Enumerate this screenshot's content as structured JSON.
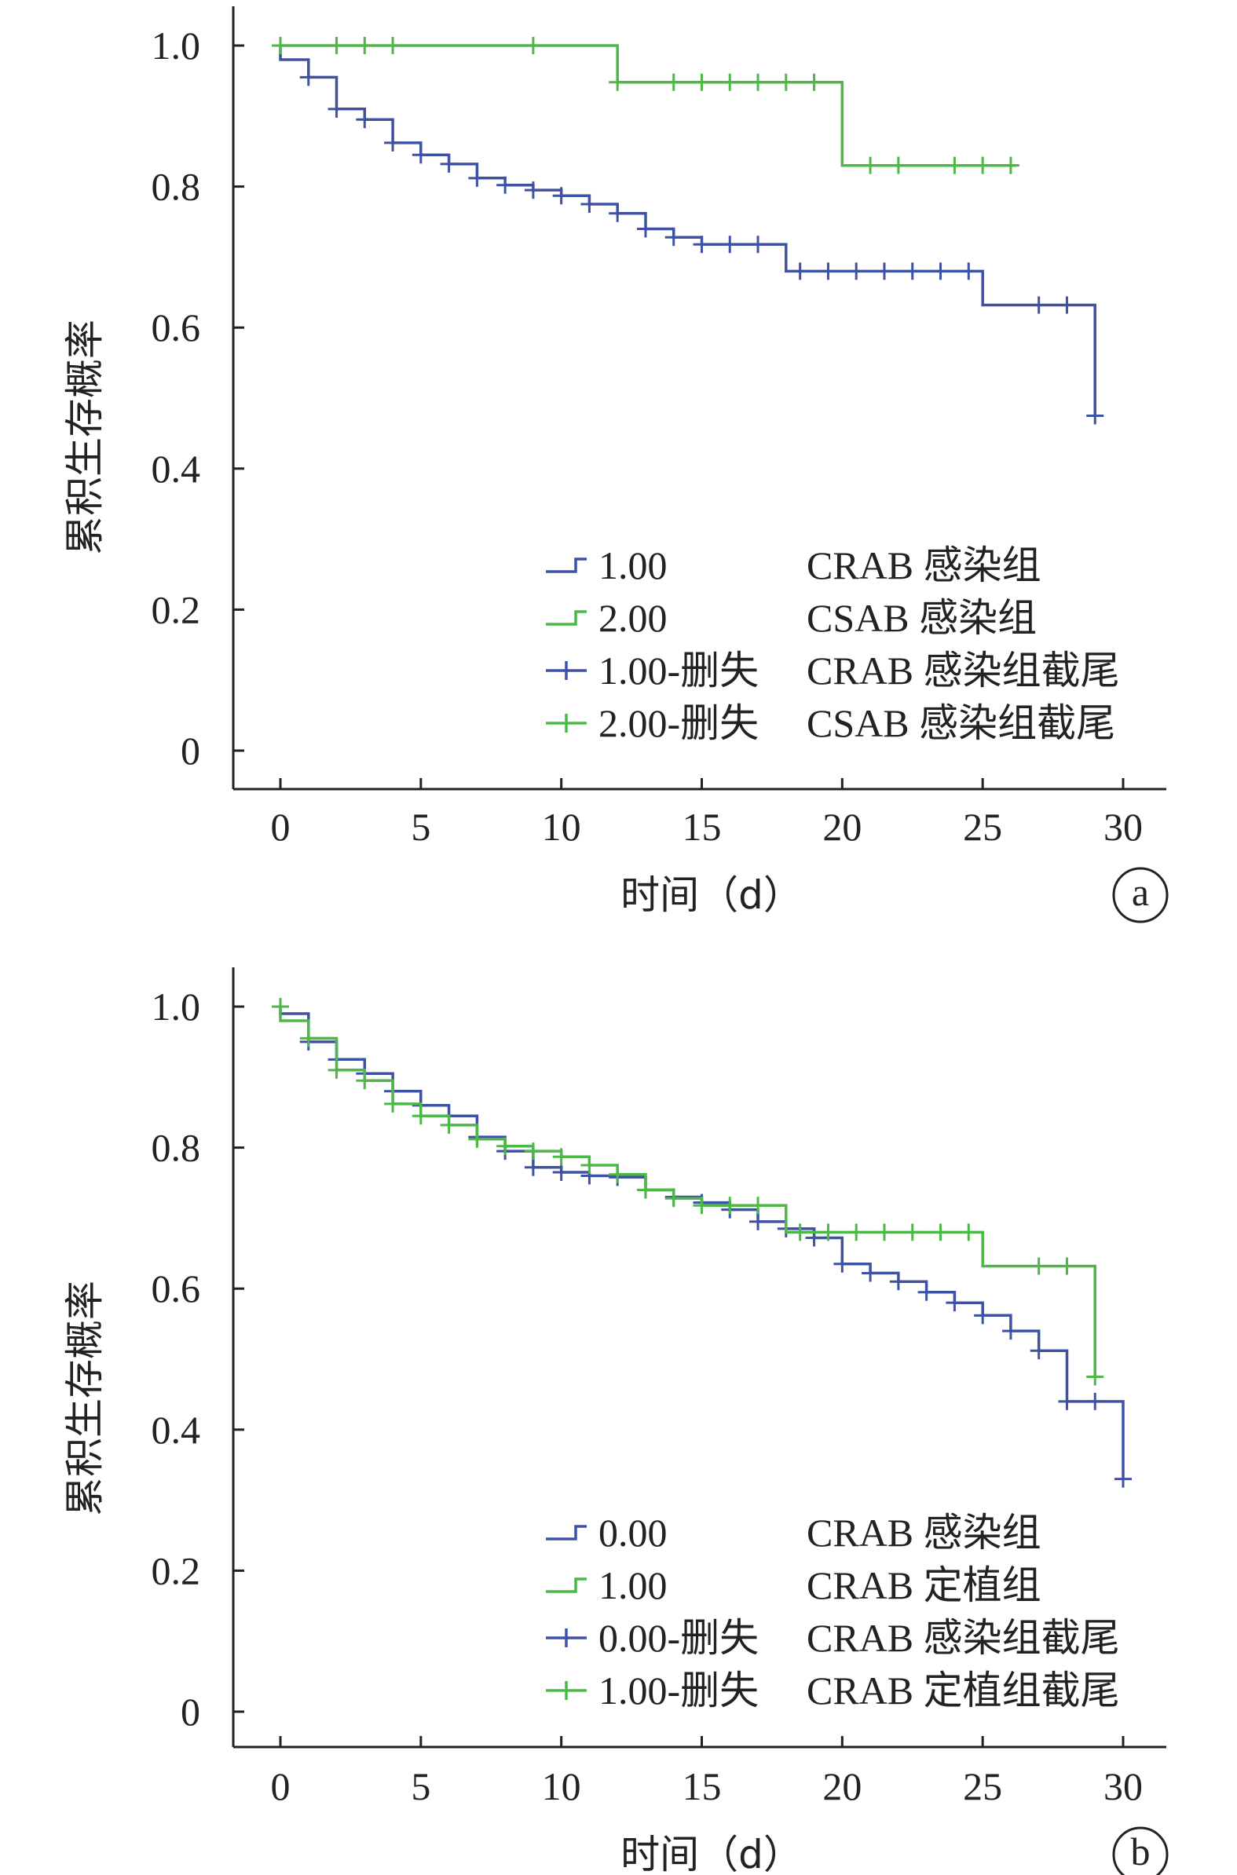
{
  "colors": {
    "blue": "#3f51a5",
    "green": "#4cb846",
    "axis": "#222222"
  },
  "chart_data": [
    {
      "type": "line",
      "subtype": "kaplan-meier",
      "panel_label": "a",
      "xlabel": "时间（d）",
      "ylabel": "累积生存概率",
      "xlim": [
        0,
        31
      ],
      "ylim": [
        0,
        1.0
      ],
      "xticks": [
        0,
        5,
        10,
        15,
        20,
        25,
        30
      ],
      "xtick_labels": [
        "0",
        "5",
        "10",
        "15",
        "20",
        "25",
        "30"
      ],
      "yticks": [
        0,
        0.2,
        0.4,
        0.6,
        0.8,
        1.0
      ],
      "ytick_labels": [
        "0",
        "0.2",
        "0.4",
        "0.6",
        "0.8",
        "1.0"
      ],
      "legend": {
        "position": "lower-right",
        "entries": [
          {
            "code": "1.00",
            "label": "CRAB 感染组",
            "marker": "step",
            "color": "blue"
          },
          {
            "code": "2.00",
            "label": "CSAB 感染组",
            "marker": "step",
            "color": "green"
          },
          {
            "code": "1.00-删失",
            "label": "CRAB 感染组截尾",
            "marker": "plus",
            "color": "blue"
          },
          {
            "code": "2.00-删失",
            "label": "CSAB 感染组截尾",
            "marker": "plus",
            "color": "green"
          }
        ]
      },
      "series": [
        {
          "color": "blue",
          "steps": [
            [
              0,
              1.0
            ],
            [
              0,
              0.98
            ],
            [
              1,
              0.98
            ],
            [
              1,
              0.955
            ],
            [
              2,
              0.955
            ],
            [
              2,
              0.91
            ],
            [
              3,
              0.91
            ],
            [
              3,
              0.895
            ],
            [
              4,
              0.895
            ],
            [
              4,
              0.862
            ],
            [
              5,
              0.862
            ],
            [
              5,
              0.845
            ],
            [
              6,
              0.845
            ],
            [
              6,
              0.832
            ],
            [
              7,
              0.832
            ],
            [
              7,
              0.812
            ],
            [
              8,
              0.812
            ],
            [
              8,
              0.802
            ],
            [
              9,
              0.802
            ],
            [
              9,
              0.795
            ],
            [
              10,
              0.795
            ],
            [
              10,
              0.787
            ],
            [
              11,
              0.787
            ],
            [
              11,
              0.775
            ],
            [
              12,
              0.775
            ],
            [
              12,
              0.762
            ],
            [
              13,
              0.762
            ],
            [
              13,
              0.74
            ],
            [
              14,
              0.74
            ],
            [
              14,
              0.728
            ],
            [
              15,
              0.728
            ],
            [
              15,
              0.718
            ],
            [
              18,
              0.718
            ],
            [
              18,
              0.68
            ],
            [
              25,
              0.68
            ],
            [
              25,
              0.632
            ],
            [
              29,
              0.632
            ],
            [
              29,
              0.475
            ]
          ],
          "censored": [
            [
              0,
              1.0
            ],
            [
              1,
              0.955
            ],
            [
              2,
              0.91
            ],
            [
              3,
              0.895
            ],
            [
              4,
              0.862
            ],
            [
              5,
              0.845
            ],
            [
              6,
              0.832
            ],
            [
              7,
              0.812
            ],
            [
              8,
              0.802
            ],
            [
              9,
              0.795
            ],
            [
              10,
              0.787
            ],
            [
              11,
              0.775
            ],
            [
              12,
              0.762
            ],
            [
              13,
              0.74
            ],
            [
              14,
              0.728
            ],
            [
              15,
              0.718
            ],
            [
              16,
              0.718
            ],
            [
              17,
              0.718
            ],
            [
              18.5,
              0.68
            ],
            [
              19.5,
              0.68
            ],
            [
              20.5,
              0.68
            ],
            [
              21.5,
              0.68
            ],
            [
              22.5,
              0.68
            ],
            [
              23.5,
              0.68
            ],
            [
              24.5,
              0.68
            ],
            [
              27,
              0.632
            ],
            [
              28,
              0.632
            ],
            [
              29,
              0.475
            ]
          ]
        },
        {
          "color": "green",
          "steps": [
            [
              0,
              1.0
            ],
            [
              12,
              1.0
            ],
            [
              12,
              0.948
            ],
            [
              20,
              0.948
            ],
            [
              20,
              0.83
            ],
            [
              26.2,
              0.83
            ]
          ],
          "censored": [
            [
              0,
              1.0
            ],
            [
              2,
              1.0
            ],
            [
              3,
              1.0
            ],
            [
              4,
              1.0
            ],
            [
              9,
              1.0
            ],
            [
              12,
              0.948
            ],
            [
              14,
              0.948
            ],
            [
              15,
              0.948
            ],
            [
              16,
              0.948
            ],
            [
              17,
              0.948
            ],
            [
              18,
              0.948
            ],
            [
              19,
              0.948
            ],
            [
              21,
              0.83
            ],
            [
              22,
              0.83
            ],
            [
              24,
              0.83
            ],
            [
              25,
              0.83
            ],
            [
              26,
              0.83
            ]
          ]
        }
      ]
    },
    {
      "type": "line",
      "subtype": "kaplan-meier",
      "panel_label": "b",
      "xlabel": "时间（d）",
      "ylabel": "累积生存概率",
      "xlim": [
        0,
        31
      ],
      "ylim": [
        0,
        1.0
      ],
      "xticks": [
        0,
        5,
        10,
        15,
        20,
        25,
        30
      ],
      "xtick_labels": [
        "0",
        "5",
        "10",
        "15",
        "20",
        "25",
        "30"
      ],
      "yticks": [
        0,
        0.2,
        0.4,
        0.6,
        0.8,
        1.0
      ],
      "ytick_labels": [
        "0",
        "0.2",
        "0.4",
        "0.6",
        "0.8",
        "1.0"
      ],
      "legend": {
        "position": "lower-right",
        "entries": [
          {
            "code": "0.00",
            "label": "CRAB 感染组",
            "marker": "step",
            "color": "blue"
          },
          {
            "code": "1.00",
            "label": "CRAB 定植组",
            "marker": "step",
            "color": "green"
          },
          {
            "code": "0.00-删失",
            "label": "CRAB 感染组截尾",
            "marker": "plus",
            "color": "blue"
          },
          {
            "code": "1.00-删失",
            "label": "CRAB 定植组截尾",
            "marker": "plus",
            "color": "green"
          }
        ]
      },
      "series": [
        {
          "color": "blue",
          "steps": [
            [
              0,
              1.0
            ],
            [
              0,
              0.99
            ],
            [
              1,
              0.99
            ],
            [
              1,
              0.95
            ],
            [
              2,
              0.95
            ],
            [
              2,
              0.925
            ],
            [
              3,
              0.925
            ],
            [
              3,
              0.905
            ],
            [
              4,
              0.905
            ],
            [
              4,
              0.88
            ],
            [
              5,
              0.88
            ],
            [
              5,
              0.86
            ],
            [
              6,
              0.86
            ],
            [
              6,
              0.845
            ],
            [
              7,
              0.845
            ],
            [
              7,
              0.815
            ],
            [
              8,
              0.815
            ],
            [
              8,
              0.795
            ],
            [
              9,
              0.795
            ],
            [
              9,
              0.772
            ],
            [
              10,
              0.772
            ],
            [
              10,
              0.765
            ],
            [
              11,
              0.765
            ],
            [
              11,
              0.76
            ],
            [
              12,
              0.76
            ],
            [
              12,
              0.758
            ],
            [
              13,
              0.758
            ],
            [
              13,
              0.74
            ],
            [
              14,
              0.74
            ],
            [
              14,
              0.73
            ],
            [
              15,
              0.73
            ],
            [
              15,
              0.722
            ],
            [
              16,
              0.722
            ],
            [
              16,
              0.712
            ],
            [
              17,
              0.712
            ],
            [
              17,
              0.695
            ],
            [
              18,
              0.695
            ],
            [
              18,
              0.685
            ],
            [
              19,
              0.685
            ],
            [
              19,
              0.672
            ],
            [
              20,
              0.672
            ],
            [
              20,
              0.635
            ],
            [
              21,
              0.635
            ],
            [
              21,
              0.622
            ],
            [
              22,
              0.622
            ],
            [
              22,
              0.61
            ],
            [
              23,
              0.61
            ],
            [
              23,
              0.595
            ],
            [
              24,
              0.595
            ],
            [
              24,
              0.58
            ],
            [
              25,
              0.58
            ],
            [
              25,
              0.562
            ],
            [
              26,
              0.562
            ],
            [
              26,
              0.54
            ],
            [
              27,
              0.54
            ],
            [
              27,
              0.512
            ],
            [
              28,
              0.512
            ],
            [
              28,
              0.44
            ],
            [
              30,
              0.44
            ],
            [
              30,
              0.33
            ]
          ],
          "censored": [
            [
              1,
              0.95
            ],
            [
              2,
              0.925
            ],
            [
              3,
              0.905
            ],
            [
              4,
              0.88
            ],
            [
              5,
              0.86
            ],
            [
              6,
              0.845
            ],
            [
              7,
              0.815
            ],
            [
              8,
              0.795
            ],
            [
              9,
              0.772
            ],
            [
              10,
              0.765
            ],
            [
              11,
              0.76
            ],
            [
              12,
              0.758
            ],
            [
              13,
              0.74
            ],
            [
              14,
              0.73
            ],
            [
              15,
              0.722
            ],
            [
              16,
              0.712
            ],
            [
              17,
              0.695
            ],
            [
              18,
              0.685
            ],
            [
              19,
              0.672
            ],
            [
              20,
              0.635
            ],
            [
              21,
              0.622
            ],
            [
              22,
              0.61
            ],
            [
              23,
              0.595
            ],
            [
              24,
              0.58
            ],
            [
              25,
              0.562
            ],
            [
              26,
              0.54
            ],
            [
              27,
              0.512
            ],
            [
              28,
              0.44
            ],
            [
              29,
              0.44
            ],
            [
              30,
              0.33
            ]
          ]
        },
        {
          "color": "green",
          "steps": [
            [
              0,
              1.0
            ],
            [
              0,
              0.98
            ],
            [
              1,
              0.98
            ],
            [
              1,
              0.955
            ],
            [
              2,
              0.955
            ],
            [
              2,
              0.91
            ],
            [
              3,
              0.91
            ],
            [
              3,
              0.895
            ],
            [
              4,
              0.895
            ],
            [
              4,
              0.862
            ],
            [
              5,
              0.862
            ],
            [
              5,
              0.845
            ],
            [
              6,
              0.845
            ],
            [
              6,
              0.832
            ],
            [
              7,
              0.832
            ],
            [
              7,
              0.812
            ],
            [
              8,
              0.812
            ],
            [
              8,
              0.802
            ],
            [
              9,
              0.802
            ],
            [
              9,
              0.795
            ],
            [
              10,
              0.795
            ],
            [
              10,
              0.787
            ],
            [
              11,
              0.787
            ],
            [
              11,
              0.775
            ],
            [
              12,
              0.775
            ],
            [
              12,
              0.762
            ],
            [
              13,
              0.762
            ],
            [
              13,
              0.74
            ],
            [
              14,
              0.74
            ],
            [
              14,
              0.728
            ],
            [
              15,
              0.728
            ],
            [
              15,
              0.718
            ],
            [
              18,
              0.718
            ],
            [
              18,
              0.68
            ],
            [
              25,
              0.68
            ],
            [
              25,
              0.632
            ],
            [
              29,
              0.632
            ],
            [
              29,
              0.475
            ]
          ],
          "censored": [
            [
              0,
              1.0
            ],
            [
              1,
              0.955
            ],
            [
              2,
              0.91
            ],
            [
              3,
              0.895
            ],
            [
              4,
              0.862
            ],
            [
              5,
              0.845
            ],
            [
              6,
              0.832
            ],
            [
              7,
              0.812
            ],
            [
              8,
              0.802
            ],
            [
              9,
              0.795
            ],
            [
              10,
              0.787
            ],
            [
              11,
              0.775
            ],
            [
              12,
              0.762
            ],
            [
              13,
              0.74
            ],
            [
              14,
              0.728
            ],
            [
              15,
              0.718
            ],
            [
              16,
              0.718
            ],
            [
              17,
              0.718
            ],
            [
              18.5,
              0.68
            ],
            [
              19.5,
              0.68
            ],
            [
              20.5,
              0.68
            ],
            [
              21.5,
              0.68
            ],
            [
              22.5,
              0.68
            ],
            [
              23.5,
              0.68
            ],
            [
              24.5,
              0.68
            ],
            [
              27,
              0.632
            ],
            [
              28,
              0.632
            ],
            [
              29,
              0.475
            ]
          ]
        }
      ]
    }
  ]
}
